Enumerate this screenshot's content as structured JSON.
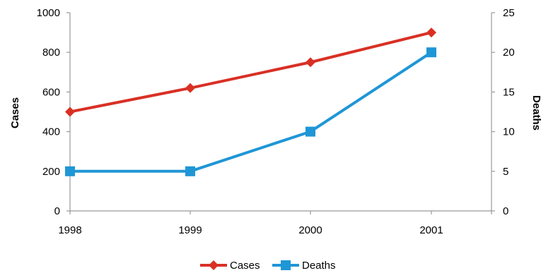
{
  "chart_data": {
    "type": "line",
    "title": "",
    "x": [
      "1998",
      "1999",
      "2000",
      "2001"
    ],
    "series": [
      {
        "name": "Cases",
        "axis": "left",
        "color": "#d93025",
        "marker": "diamond",
        "values": [
          500,
          620,
          750,
          900
        ]
      },
      {
        "name": "Deaths",
        "axis": "right",
        "color": "#1f96d6",
        "marker": "square",
        "values": [
          5,
          5,
          10,
          20
        ]
      }
    ],
    "y_left": {
      "label": "Cases",
      "ylim": [
        0,
        1000
      ],
      "ticks": [
        "0",
        "200",
        "400",
        "600",
        "800",
        "1000"
      ]
    },
    "y_right": {
      "label": "Deaths",
      "ylim": [
        0,
        25
      ],
      "ticks": [
        "0",
        "5",
        "10",
        "15",
        "20",
        "25"
      ]
    },
    "grid": false,
    "legend_position": "bottom"
  }
}
